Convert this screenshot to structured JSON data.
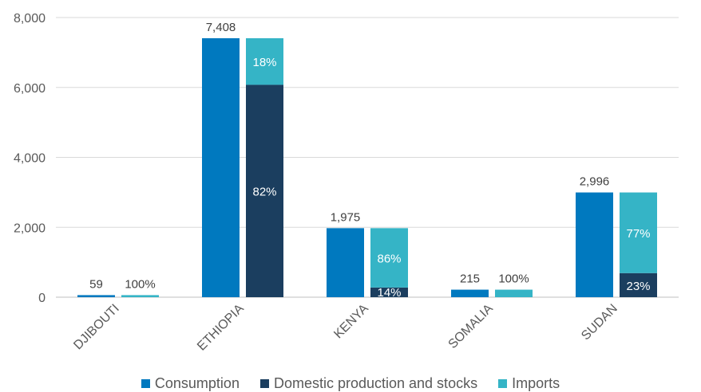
{
  "chart_data": {
    "type": "bar",
    "categories": [
      "DJIBOUTI",
      "ETHIOPIA",
      "KENYA",
      "SOMALIA",
      "SUDAN"
    ],
    "ylim": [
      0,
      8000
    ],
    "y_ticks": [
      "0",
      "2,000",
      "4,000",
      "6,000",
      "8,000"
    ],
    "grid": true,
    "legend_position": "bottom",
    "colors": {
      "consumption": "#0079BF",
      "domestic": "#1B3E5F",
      "imports": "#35B4C6"
    },
    "series": [
      {
        "name": "Consumption",
        "values": [
          59,
          7408,
          1975,
          215,
          2996
        ],
        "labels": [
          "59",
          "7,408",
          "1,975",
          "215",
          "2,996"
        ]
      },
      {
        "name": "Domestic production and stocks",
        "values": [
          0,
          6075,
          277,
          0,
          689
        ],
        "labels": [
          "",
          "82%",
          "14%",
          "",
          "23%"
        ]
      },
      {
        "name": "Imports",
        "values": [
          59,
          1333,
          1698,
          215,
          2307
        ],
        "labels": [
          "100%",
          "18%",
          "86%",
          "100%",
          "77%"
        ]
      }
    ]
  }
}
